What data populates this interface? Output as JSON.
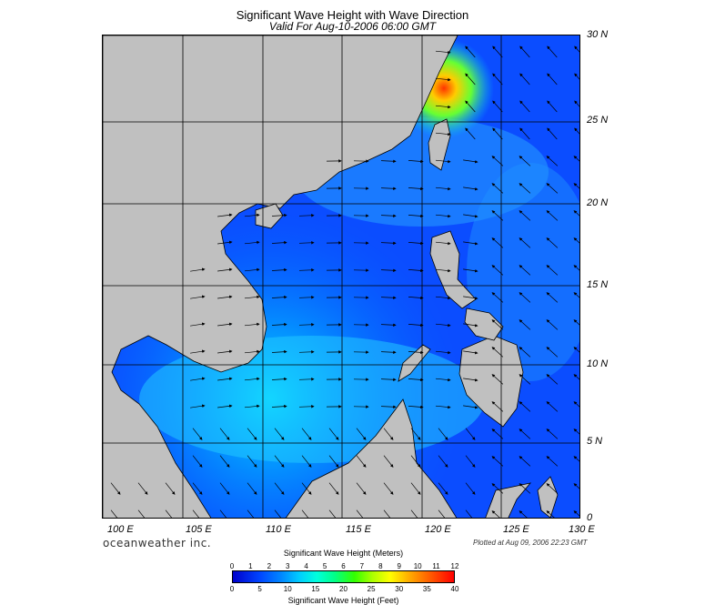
{
  "title": "Significant Wave Height with Wave Direction",
  "subtitle": "Valid For Aug-10-2006 06:00 GMT",
  "lat_labels": [
    "30 N",
    "25 N",
    "20 N",
    "15 N",
    "10 N",
    "5 N",
    "0"
  ],
  "lon_labels": [
    "100 E",
    "105 E",
    "110 E",
    "115 E",
    "120 E",
    "125 E",
    "130 E"
  ],
  "branding": "oceanweather inc.",
  "plotted": "Plotted at Aug 09, 2006 22:23 GMT",
  "colorbar": {
    "title_meters": "Significant Wave Height (Meters)",
    "title_feet": "Significant Wave Height (Feet)",
    "meter_ticks": [
      "0",
      "1",
      "2",
      "3",
      "4",
      "5",
      "6",
      "7",
      "8",
      "9",
      "10",
      "11",
      "12"
    ],
    "feet_ticks": [
      "0",
      "5",
      "10",
      "15",
      "20",
      "25",
      "30",
      "35",
      "40"
    ]
  },
  "colors": {
    "land": "#c0c0c0",
    "ocean_low": "#0033ee",
    "ocean_mid": "#00aaff",
    "high": "#ff4400"
  }
}
